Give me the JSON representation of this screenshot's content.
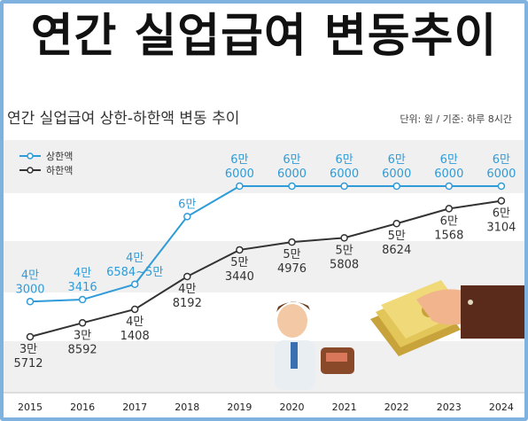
{
  "headline": "연간 실업급여 변동추이",
  "chart_data": {
    "type": "line",
    "title": "연간 실업급여 상한-하한액 변동 추이",
    "unit_note": "단위: 원 / 기준: 하루 8시간",
    "categories": [
      "2015",
      "2016",
      "2017",
      "2018",
      "2019",
      "2020",
      "2021",
      "2022",
      "2023",
      "2024"
    ],
    "series": [
      {
        "name": "상한액",
        "color": "#2f9bd8",
        "values": [
          43000,
          43416,
          46584.5,
          60000,
          66000,
          66000,
          66000,
          66000,
          66000,
          66000
        ],
        "labels": [
          [
            "4만",
            "3000"
          ],
          [
            "4만",
            "3416"
          ],
          [
            "4만",
            "6584~5만"
          ],
          [
            "6만"
          ],
          [
            "6만",
            "6000"
          ],
          [
            "6만",
            "6000"
          ],
          [
            "6만",
            "6000"
          ],
          [
            "6만",
            "6000"
          ],
          [
            "6만",
            "6000"
          ],
          [
            "6만",
            "6000"
          ]
        ]
      },
      {
        "name": "하한액",
        "color": "#333333",
        "values": [
          35712,
          38592,
          41408,
          48192,
          53440,
          54976,
          55808,
          58624,
          61568,
          63104
        ],
        "labels": [
          [
            "3만",
            "5712"
          ],
          [
            "3만",
            "8592"
          ],
          [
            "4만",
            "1408"
          ],
          [
            "4만",
            "8192"
          ],
          [
            "5만",
            "3440"
          ],
          [
            "5만",
            "4976"
          ],
          [
            "5만",
            "5808"
          ],
          [
            "5만",
            "8624"
          ],
          [
            "6만",
            "1568"
          ],
          [
            "6만",
            "3104"
          ]
        ]
      }
    ],
    "legend_position": "top-left",
    "grid": false
  }
}
